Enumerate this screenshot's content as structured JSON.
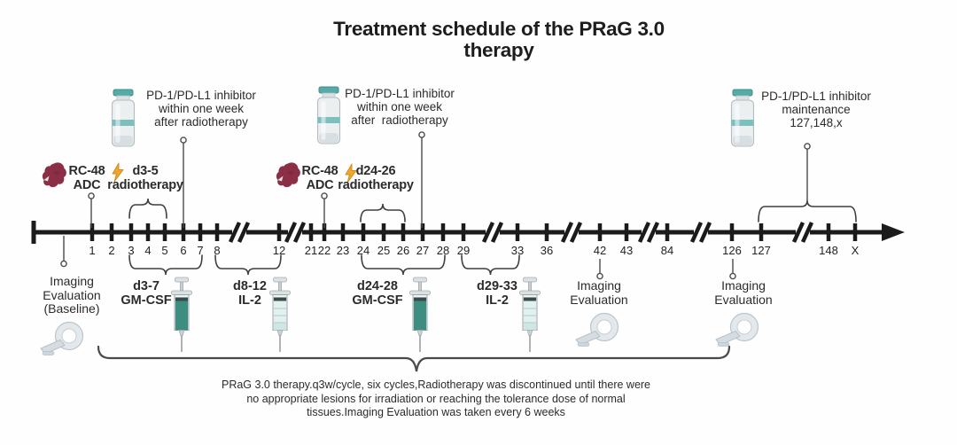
{
  "title": {
    "line1": "Treatment schedule of the PRaG 3.0",
    "line2": "therapy"
  },
  "timeline": {
    "tick_labels": [
      "1",
      "2",
      "3",
      "4",
      "5",
      "6",
      "7",
      "8",
      "12",
      "21",
      "22",
      "23",
      "24",
      "25",
      "26",
      "27",
      "28",
      "29",
      "33",
      "36",
      "42",
      "43",
      "84",
      "126",
      "127",
      "148",
      "X"
    ]
  },
  "annotations": {
    "rc48_first": {
      "line1": "RC-48",
      "line2": "ADC"
    },
    "radiotherapy_first": {
      "line1": "d3-5",
      "line2": "radiotherapy"
    },
    "rc48_second": {
      "line1": "RC-48",
      "line2": "ADC"
    },
    "radiotherapy_second": {
      "line1": "d24-26",
      "line2": "radiotherapy"
    },
    "inhibitor_first": {
      "line1": "PD-1/PD-L1 inhibitor",
      "line2": "within one week",
      "line3": "after radiotherapy"
    },
    "inhibitor_second": {
      "line1": "PD-1/PD-L1 inhibitor",
      "line2": "within one week",
      "line3": "after  radiotherapy"
    },
    "inhibitor_maintenance": {
      "line1": "PD-1/PD-L1 inhibitor",
      "line2": "maintenance",
      "line3": "127,148,x"
    },
    "gmcsf_first": {
      "line1": "d3-7",
      "line2": "GM-CSF"
    },
    "il2_first": {
      "line1": "d8-12",
      "line2": "IL-2"
    },
    "gmcsf_second": {
      "line1": "d24-28",
      "line2": "GM-CSF"
    },
    "il2_second": {
      "line1": "d29-33",
      "line2": "IL-2"
    },
    "imaging_baseline": {
      "line1": "Imaging",
      "line2": "Evaluation",
      "line3": "(Baseline)"
    },
    "imaging_mid": {
      "line1": "Imaging",
      "line2": "Evaluation"
    },
    "imaging_late": {
      "line1": "Imaging",
      "line2": "Evaluation"
    }
  },
  "footnote": {
    "line1": "PRaG 3.0 therapy.q3w/cycle, six cycles,Radiotherapy was discontinued until there were",
    "line2": "no appropriate lesions for irradiation or reaching the tolerance dose of normal",
    "line3": "tissues.Imaging Evaluation was taken every 6 weeks"
  },
  "icons": {
    "vial": "medicine-vial-icon",
    "rc48": "adc-drug-icon",
    "radiotherapy": "lightning-bolt-icon",
    "injection": "syringe-icon",
    "imaging": "ct-scanner-icon"
  },
  "colors": {
    "axis": "#1b1b1b",
    "text": "#2b2b2b",
    "teal_cap": "#56aaa8",
    "teal_band": "#7cc0bd",
    "maroon": "#8b2f46",
    "orange": "#f2a52b",
    "drug_teal": "#3d8d80",
    "brace": "#3e3e3e"
  }
}
